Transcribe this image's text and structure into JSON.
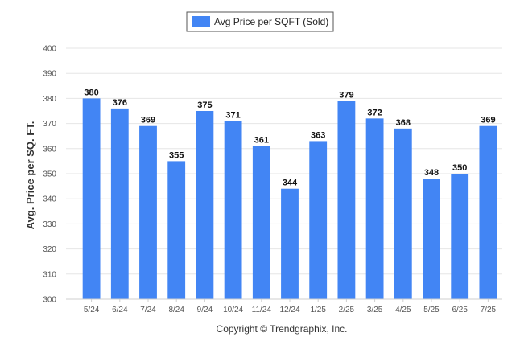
{
  "chart_data": {
    "type": "bar",
    "legend": {
      "label": "Avg Price per SQFT (Sold)",
      "placement": "top-center"
    },
    "categories": [
      "5/24",
      "6/24",
      "7/24",
      "8/24",
      "9/24",
      "10/24",
      "11/24",
      "12/24",
      "1/25",
      "2/25",
      "3/25",
      "4/25",
      "5/25",
      "6/25",
      "7/25"
    ],
    "series": [
      {
        "name": "Avg Price per SQFT (Sold)",
        "values": [
          380,
          376,
          369,
          355,
          375,
          371,
          361,
          344,
          363,
          379,
          372,
          368,
          348,
          350,
          369
        ],
        "color": "#4285f4"
      }
    ],
    "ylabel": "Avg. Price per SQ. FT.",
    "ylim": [
      300,
      400
    ],
    "yticks": [
      300,
      310,
      320,
      330,
      340,
      350,
      360,
      370,
      380,
      390,
      400
    ],
    "grid": true,
    "data_labels": true
  },
  "footer": {
    "copyright": "Copyright © Trendgraphix, Inc."
  }
}
